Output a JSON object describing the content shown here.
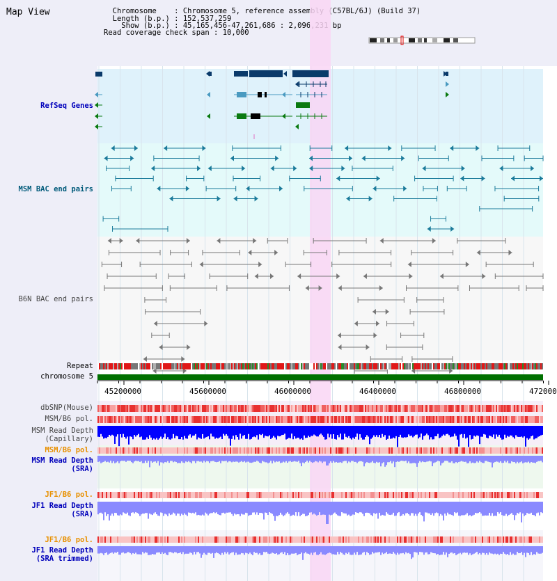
{
  "panel_title": "Map View",
  "info": {
    "chromosome_label": "Chromosome",
    "chromosome_value": "Chromosome 5, reference assembly (C57BL/6J) (Build 37)",
    "length_label": "Length (b.p.)",
    "length_value": "152,537,259",
    "show_label": "Show (b.p.)",
    "show_value": "45,165,456-47,261,686 : 2,096,231 bp",
    "coverage_label": "Read coverage check span",
    "coverage_value": "10,000"
  },
  "tracks": {
    "refseq": "RefSeq Genes",
    "msm_bac": "MSM BAC end pairs",
    "b6n_bac": "B6N BAC end pairs",
    "repeat": "Repeat",
    "chromosome": "chromosome 5",
    "dbsnp": "dbSNP(Mouse)",
    "msm_pol": "MSM/B6 pol.",
    "msm_depth_cap_1": "MSM Read Depth",
    "msm_depth_cap_2": "(Capillary)",
    "msm_pol_sra": "MSM/B6 pol.",
    "msm_depth_sra_1": "MSM Read Depth",
    "msm_depth_sra_2": "(SRA)",
    "jf1_pol": "JF1/B6 pol.",
    "jf1_depth_1": "JF1 Read Depth",
    "jf1_depth_2": "(SRA)",
    "jf1_pol_trim": "JF1/B6 pol.",
    "jf1_depth_trim_1": "JF1 Read Depth",
    "jf1_depth_trim_2": "(SRA trimmed)"
  },
  "axis_ticks": [
    "45200000",
    "45600000",
    "46000000",
    "46400000",
    "46800000",
    "472000"
  ],
  "colors": {
    "highlight": "#f9d6f4",
    "refseq_bg": "#dff2fb",
    "msm_bg": "#e4fafa",
    "b6n_bg": "#f7f7f7",
    "chromosome": "#007000",
    "depth_blue": "#0000ff",
    "depth_light": "#8a8aff",
    "pol_red": "#e64040"
  }
}
